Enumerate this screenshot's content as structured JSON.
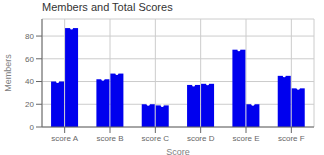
{
  "chart_data": {
    "type": "bar",
    "title": "Members and Total Scores",
    "xlabel": "Score",
    "ylabel": "Members",
    "categories": [
      "score A",
      "score B",
      "score C",
      "score D",
      "score E",
      "score F"
    ],
    "series": [
      {
        "color": "#0000EE",
        "values": [
          40,
          42,
          20,
          37,
          68,
          45
        ]
      },
      {
        "color": "#0000EE",
        "values": [
          87,
          47,
          19,
          38,
          20,
          34
        ]
      }
    ],
    "ylim": [
      0,
      95
    ],
    "yticks": [
      0,
      20,
      40,
      60,
      80
    ],
    "grid": true
  }
}
